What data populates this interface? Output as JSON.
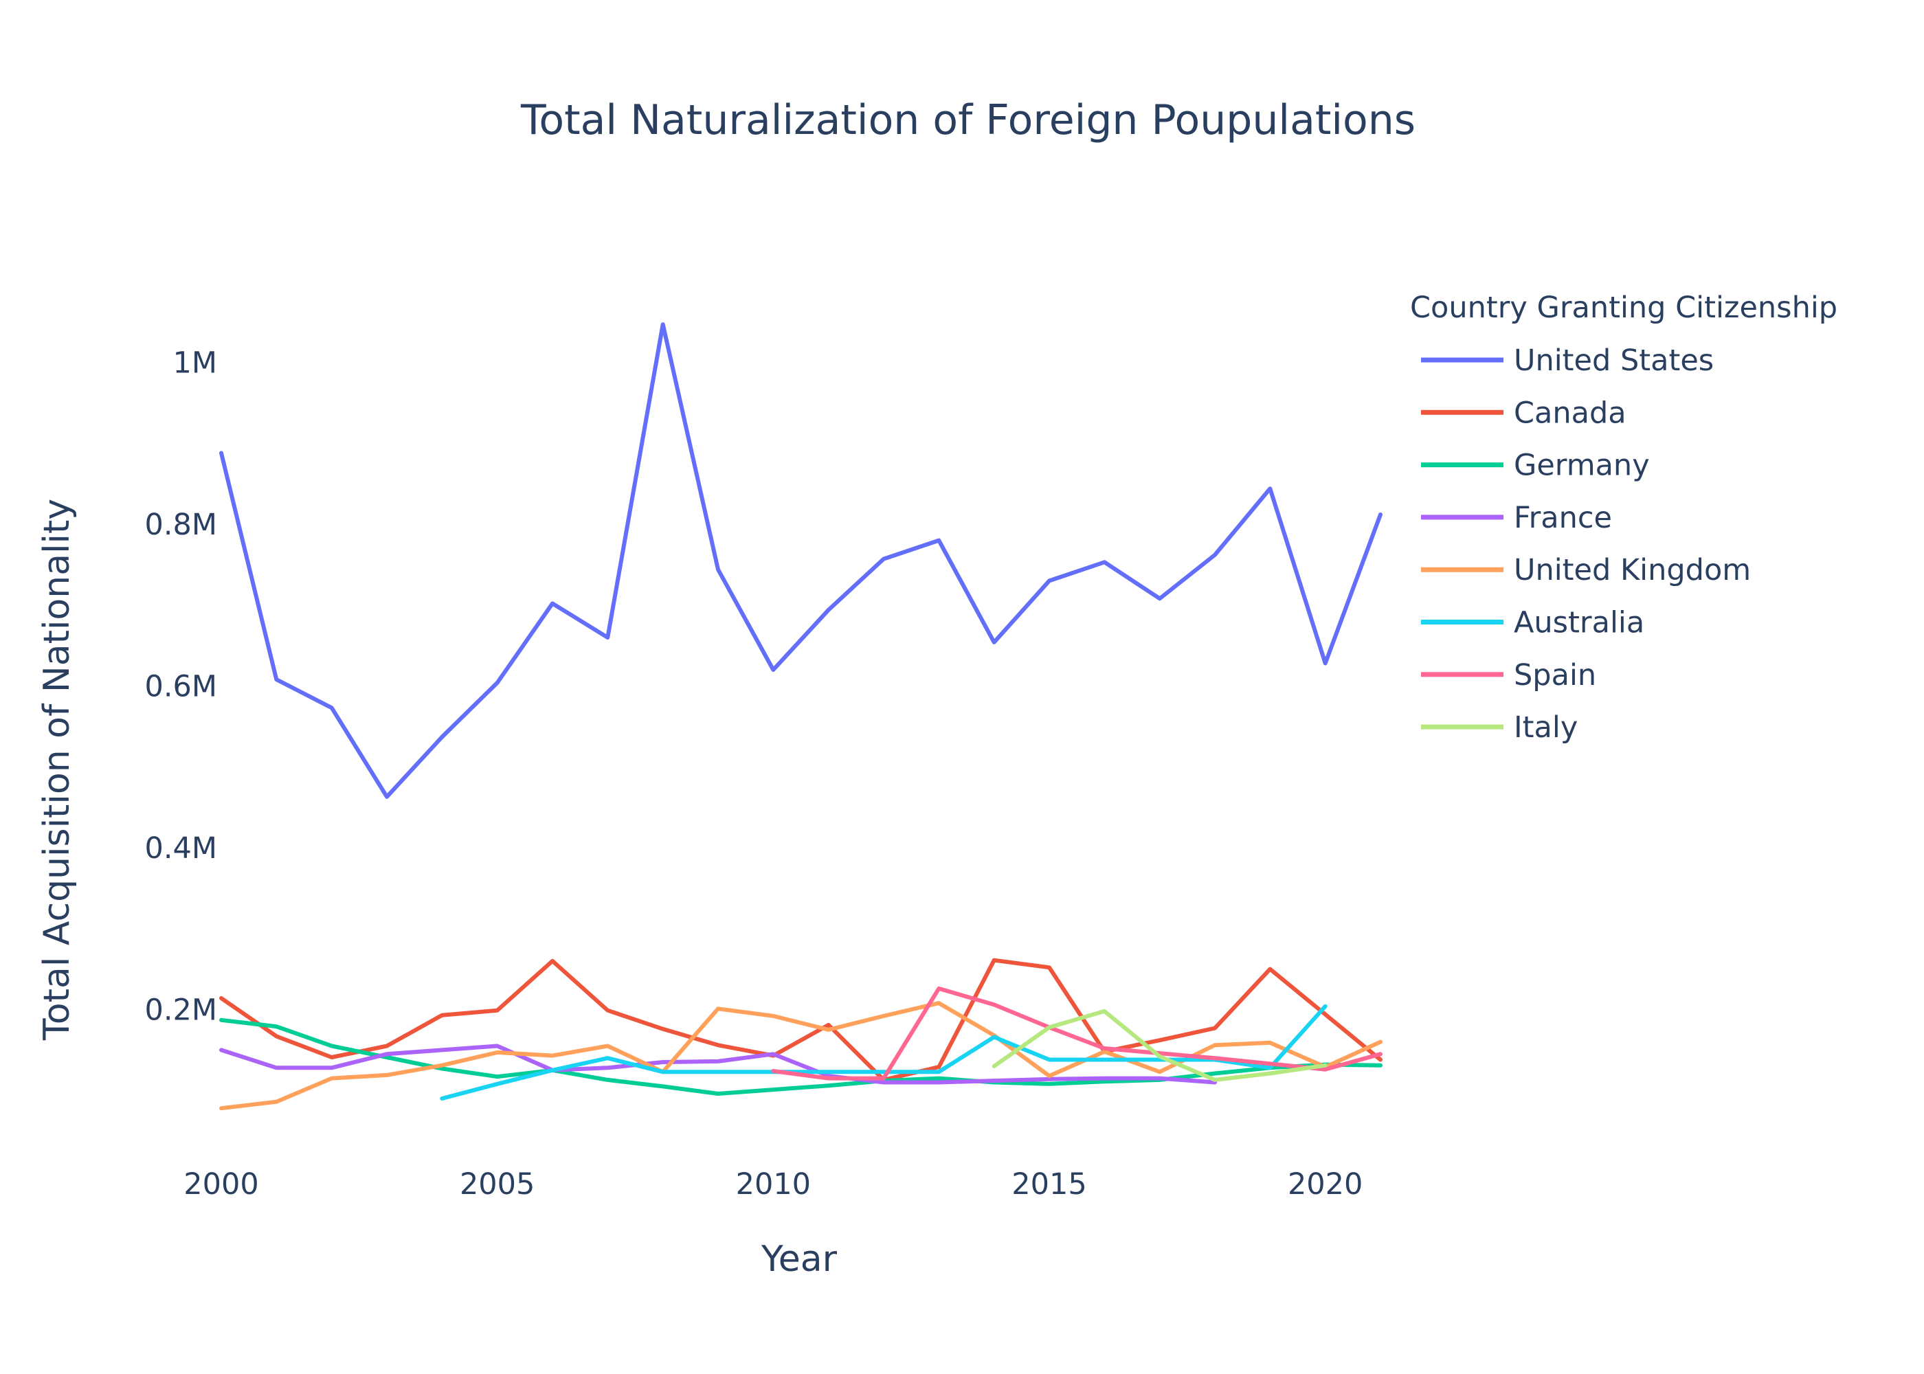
{
  "chart_data": {
    "type": "line",
    "title": "Total Naturalization of Foreign Poupulations",
    "xlabel": "Year",
    "ylabel": "Total Acquisition of Nationality",
    "xlim": [
      2000,
      2021
    ],
    "ylim": [
      0,
      1100000
    ],
    "x_ticks": [
      2000,
      2005,
      2010,
      2015,
      2020
    ],
    "y_ticks": [
      200000,
      400000,
      600000,
      800000,
      1000000
    ],
    "y_tick_labels": [
      "0.2M",
      "0.4M",
      "0.6M",
      "0.8M",
      "1M"
    ],
    "grid": false,
    "legend_title": "Country Granting Citizenship",
    "legend_position": "right",
    "series": [
      {
        "name": "United States",
        "color": "#636efa",
        "x": [
          2000,
          2001,
          2002,
          2003,
          2004,
          2005,
          2006,
          2007,
          2008,
          2009,
          2010,
          2011,
          2012,
          2013,
          2014,
          2015,
          2016,
          2017,
          2018,
          2019,
          2020,
          2021
        ],
        "values": [
          888000,
          608000,
          573000,
          463000,
          537000,
          604000,
          702000,
          660000,
          1047000,
          744000,
          620000,
          694000,
          757000,
          780000,
          654000,
          730000,
          753000,
          708000,
          762000,
          844000,
          628000,
          812000
        ]
      },
      {
        "name": "Canada",
        "color": "#ef553b",
        "x": [
          2000,
          2001,
          2002,
          2003,
          2004,
          2005,
          2006,
          2007,
          2008,
          2009,
          2010,
          2011,
          2012,
          2013,
          2014,
          2015,
          2016,
          2017,
          2018,
          2019,
          2020,
          2021
        ],
        "values": [
          214000,
          167000,
          141000,
          155000,
          193000,
          199000,
          260000,
          199000,
          176000,
          156000,
          143000,
          181000,
          113000,
          129000,
          261000,
          252000,
          148000,
          162000,
          177000,
          250000,
          194000,
          138000
        ]
      },
      {
        "name": "Germany",
        "color": "#00cc96",
        "x": [
          2000,
          2001,
          2002,
          2003,
          2004,
          2005,
          2006,
          2007,
          2008,
          2009,
          2010,
          2011,
          2012,
          2013,
          2014,
          2015,
          2016,
          2017,
          2018,
          2019,
          2020,
          2021
        ],
        "values": [
          187000,
          179000,
          155000,
          141000,
          127000,
          117000,
          125000,
          113000,
          105000,
          96000,
          101000,
          106000,
          112000,
          115000,
          110000,
          108000,
          111000,
          113000,
          121000,
          128000,
          132000,
          131000
        ]
      },
      {
        "name": "France",
        "color": "#ab63fa",
        "x": [
          2000,
          2001,
          2002,
          2003,
          2004,
          2005,
          2006,
          2007,
          2008,
          2009,
          2010,
          2011,
          2012,
          2013,
          2014,
          2015,
          2016,
          2017,
          2018
        ],
        "values": [
          150000,
          128000,
          128000,
          145000,
          150000,
          155000,
          125000,
          128000,
          135000,
          136000,
          145000,
          118000,
          110000,
          110000,
          112000,
          114000,
          115000,
          115000,
          110000
        ]
      },
      {
        "name": "United Kingdom",
        "color": "#ffa15a",
        "x": [
          2000,
          2001,
          2002,
          2003,
          2004,
          2005,
          2006,
          2007,
          2008,
          2009,
          2010,
          2011,
          2012,
          2013,
          2014,
          2015,
          2016,
          2017,
          2018,
          2019,
          2020,
          2021
        ],
        "values": [
          78000,
          86000,
          115000,
          119000,
          131000,
          147000,
          143000,
          155000,
          123000,
          201000,
          192000,
          175000,
          192000,
          208000,
          168000,
          118000,
          148000,
          123000,
          156000,
          159000,
          129000,
          160000
        ]
      },
      {
        "name": "Australia",
        "color": "#19d3f3",
        "x": [
          2004,
          2005,
          2006,
          2007,
          2008,
          2009,
          2010,
          2011,
          2012,
          2013,
          2014,
          2015,
          2016,
          2017,
          2018,
          2019,
          2020
        ],
        "values": [
          90000,
          108000,
          125000,
          140000,
          123000,
          123000,
          123000,
          123000,
          123000,
          123000,
          166000,
          138000,
          138000,
          138000,
          138000,
          128000,
          204000
        ]
      },
      {
        "name": "Spain",
        "color": "#ff6692",
        "x": [
          2010,
          2011,
          2012,
          2013,
          2014,
          2015,
          2016,
          2017,
          2018,
          2019,
          2020,
          2021
        ],
        "values": [
          124000,
          115000,
          115000,
          226000,
          206000,
          178000,
          152000,
          146000,
          140000,
          133000,
          126000,
          145000
        ]
      },
      {
        "name": "Italy",
        "color": "#b6e880",
        "x": [
          2014,
          2015,
          2016,
          2017,
          2018,
          2019,
          2020
        ],
        "values": [
          130000,
          178000,
          198000,
          142000,
          113000,
          121000,
          131000
        ]
      }
    ]
  }
}
